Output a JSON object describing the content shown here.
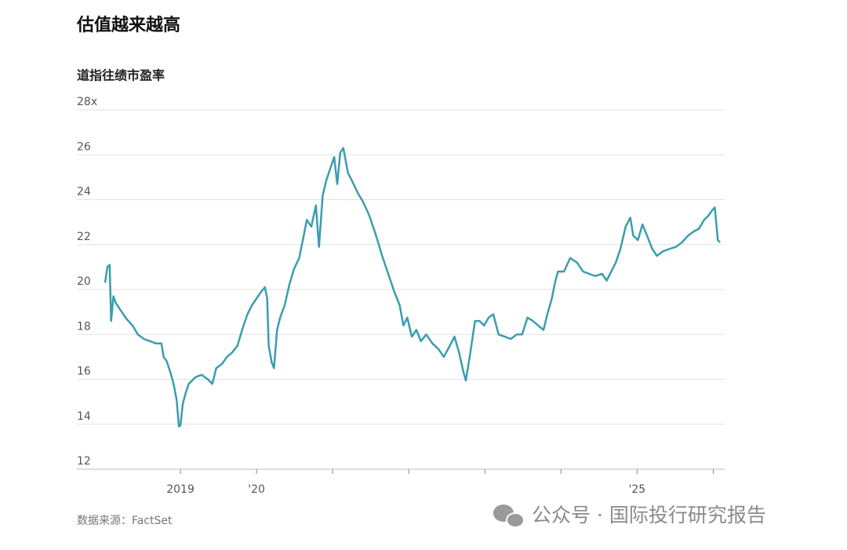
{
  "chart_data": {
    "type": "line",
    "title": "估值越来越高",
    "subtitle": "道指往绩市盈率",
    "source": "数据来源：FactSet",
    "watermark": "公众号 · 国际投行研究报告",
    "color": "#3a9db0",
    "grid": true,
    "xlim": [
      2018,
      2026.15
    ],
    "ylim": [
      12,
      28
    ],
    "yticks": [
      12,
      14,
      16,
      18,
      20,
      22,
      24,
      26,
      {
        "value": 28,
        "label": "28x"
      }
    ],
    "xticks": [
      {
        "value": 2019,
        "label": "2019"
      },
      {
        "value": 2020,
        "label": "'20"
      },
      {
        "value": 2021,
        "label": null
      },
      {
        "value": 2022,
        "label": null
      },
      {
        "value": 2023,
        "label": null
      },
      {
        "value": 2024,
        "label": null
      },
      {
        "value": 2025,
        "label": "'25"
      },
      {
        "value": 2026,
        "label": null
      }
    ],
    "x": [
      2018.01,
      2018.04,
      2018.07,
      2018.09,
      2018.12,
      2018.15,
      2018.21,
      2018.29,
      2018.37,
      2018.44,
      2018.52,
      2018.6,
      2018.68,
      2018.75,
      2018.78,
      2018.82,
      2018.87,
      2018.91,
      2018.95,
      2018.98,
      2019.0,
      2019.03,
      2019.07,
      2019.11,
      2019.2,
      2019.28,
      2019.36,
      2019.42,
      2019.47,
      2019.55,
      2019.61,
      2019.68,
      2019.75,
      2019.81,
      2019.88,
      2019.94,
      2020.0,
      2020.06,
      2020.11,
      2020.14,
      2020.16,
      2020.2,
      2020.23,
      2020.27,
      2020.31,
      2020.37,
      2020.43,
      2020.49,
      2020.56,
      2020.62,
      2020.66,
      2020.72,
      2020.78,
      2020.82,
      2020.87,
      2020.92,
      2020.97,
      2021.02,
      2021.06,
      2021.1,
      2021.14,
      2021.2,
      2021.26,
      2021.33,
      2021.4,
      2021.48,
      2021.57,
      2021.65,
      2021.73,
      2021.81,
      2021.88,
      2021.93,
      2021.98,
      2022.04,
      2022.1,
      2022.16,
      2022.23,
      2022.31,
      2022.39,
      2022.46,
      2022.54,
      2022.6,
      2022.66,
      2022.72,
      2022.75,
      2022.8,
      2022.87,
      2022.93,
      2022.99,
      2023.05,
      2023.11,
      2023.18,
      2023.26,
      2023.34,
      2023.42,
      2023.49,
      2023.56,
      2023.63,
      2023.7,
      2023.77,
      2023.82,
      2023.88,
      2023.92,
      2023.96,
      2024.04,
      2024.12,
      2024.21,
      2024.29,
      2024.37,
      2024.45,
      2024.54,
      2024.6,
      2024.66,
      2024.72,
      2024.78,
      2024.85,
      2024.91,
      2024.95,
      2025.01,
      2025.07,
      2025.13,
      2025.2,
      2025.26,
      2025.34,
      2025.42,
      2025.51,
      2025.59,
      2025.67,
      2025.75,
      2025.81,
      2025.88,
      2025.94,
      2025.98,
      2026.02,
      2026.06,
      2026.09
    ],
    "values": [
      20.3,
      21.0,
      21.1,
      18.6,
      19.7,
      19.4,
      19.1,
      18.7,
      18.4,
      18.0,
      17.8,
      17.7,
      17.6,
      17.6,
      17.0,
      16.8,
      16.3,
      15.8,
      15.1,
      13.9,
      13.95,
      14.9,
      15.4,
      15.8,
      16.1,
      16.2,
      16.0,
      15.8,
      16.5,
      16.7,
      17.0,
      17.2,
      17.5,
      18.2,
      18.9,
      19.3,
      19.6,
      19.9,
      20.1,
      19.6,
      17.5,
      16.75,
      16.5,
      18.2,
      18.75,
      19.3,
      20.2,
      20.9,
      21.4,
      22.4,
      23.1,
      22.8,
      23.75,
      21.9,
      24.2,
      24.9,
      25.4,
      25.9,
      24.7,
      26.1,
      26.3,
      25.2,
      24.8,
      24.3,
      23.9,
      23.3,
      22.4,
      21.5,
      20.7,
      19.9,
      19.3,
      18.4,
      18.75,
      17.9,
      18.2,
      17.7,
      18.0,
      17.6,
      17.35,
      17.0,
      17.5,
      17.9,
      17.2,
      16.3,
      15.95,
      17.0,
      18.6,
      18.6,
      18.4,
      18.75,
      18.9,
      18.0,
      17.9,
      17.8,
      18.0,
      18.0,
      18.75,
      18.6,
      18.4,
      18.2,
      18.9,
      19.6,
      20.3,
      20.8,
      20.8,
      21.4,
      21.2,
      20.8,
      20.7,
      20.6,
      20.7,
      20.4,
      20.8,
      21.2,
      21.8,
      22.8,
      23.2,
      22.4,
      22.2,
      22.9,
      22.4,
      21.8,
      21.5,
      21.7,
      21.8,
      21.9,
      22.1,
      22.4,
      22.6,
      22.7,
      23.1,
      23.3,
      23.5,
      23.65,
      22.2,
      22.1
    ]
  }
}
